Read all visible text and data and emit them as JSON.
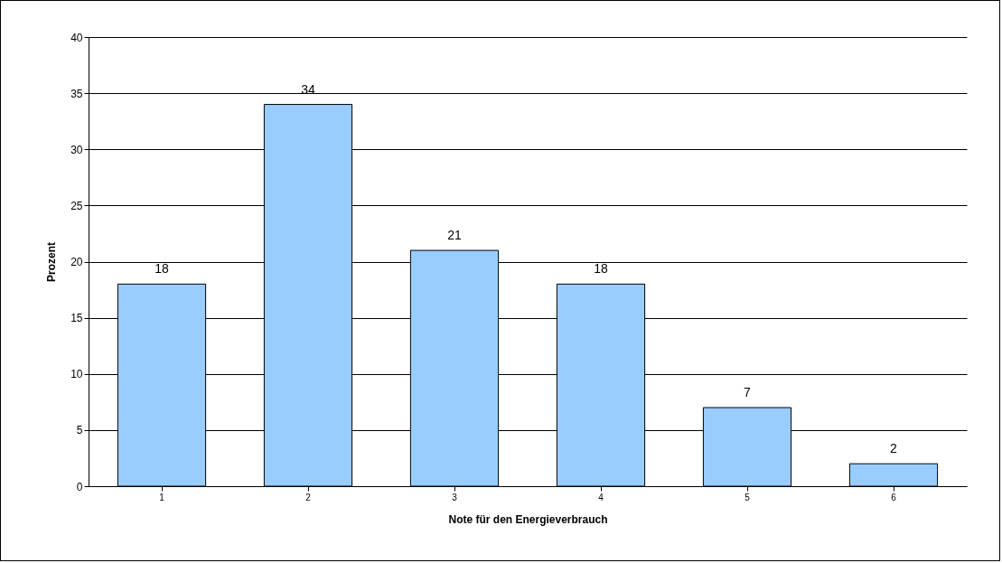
{
  "chart_data": {
    "type": "bar",
    "xlabel": "Note für den Energieverbrauch",
    "ylabel": "Prozent",
    "categories": [
      "1",
      "2",
      "3",
      "4",
      "5",
      "6"
    ],
    "values": [
      18,
      34,
      21,
      18,
      7,
      2
    ],
    "color": "#99ccff",
    "ylim": [
      0,
      40
    ],
    "yticks": [
      0,
      5,
      10,
      15,
      20,
      25,
      30,
      35,
      40
    ],
    "grid": "y",
    "data_labels": true
  }
}
